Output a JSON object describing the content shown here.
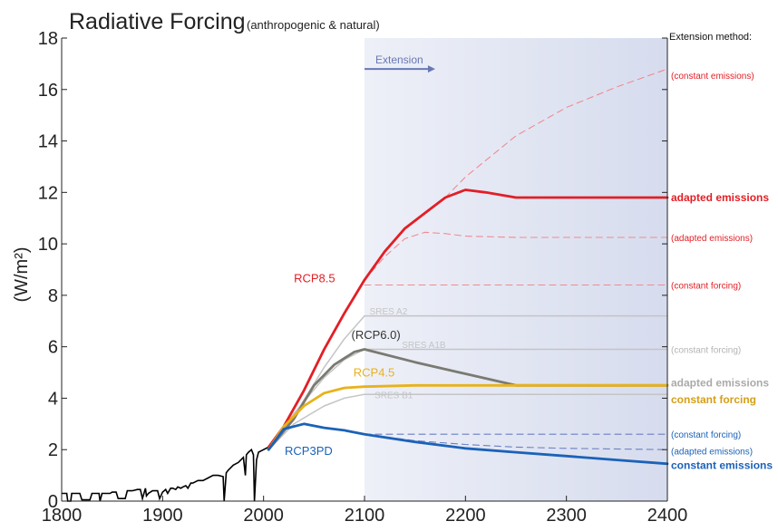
{
  "chart_data": {
    "type": "line",
    "title": "Radiative Forcing",
    "subtitle": "(anthropogenic & natural)",
    "ylabel": "(W/m²)",
    "xlabel": "",
    "xlim": [
      1800,
      2400
    ],
    "ylim": [
      0,
      18
    ],
    "xticks": [
      "1800",
      "1900",
      "2000",
      "2100",
      "2200",
      "2300",
      "2400"
    ],
    "yticks": [
      "0",
      "2",
      "4",
      "6",
      "8",
      "10",
      "12",
      "14",
      "16",
      "18"
    ],
    "grid": false,
    "extension_region": {
      "x_start": 2100,
      "x_end": 2400
    },
    "extension_arrow": {
      "label": "Extension",
      "x_start": 2100,
      "x_end": 2170,
      "y": 16.8
    },
    "legend_title": "Extension method:",
    "colors": {
      "rcp85": "#e31e25",
      "rcp85_light": "#f08a8f",
      "rcp60": "#7a7a72",
      "rcp45": "#e8b21a",
      "rcp3pd": "#1b62b8",
      "rcp3pd_dash": "#6b7fc4",
      "sres": "#c4c4c6",
      "historical": "#000000",
      "extension_band": "#e2e6f3",
      "arrow": "#6978b3"
    },
    "historical": {
      "x": [
        1800,
        1805,
        1806,
        1809,
        1810,
        1818,
        1820,
        1828,
        1830,
        1837,
        1838,
        1840,
        1848,
        1850,
        1854,
        1856,
        1863,
        1865,
        1870,
        1875,
        1878,
        1880,
        1883,
        1884,
        1886,
        1890,
        1895,
        1897,
        1900,
        1903,
        1905,
        1908,
        1910,
        1913,
        1915,
        1918,
        1920,
        1923,
        1925,
        1928,
        1930,
        1935,
        1940,
        1945,
        1950,
        1955,
        1960,
        1961,
        1963,
        1965,
        1970,
        1975,
        1980,
        1982,
        1983,
        1985,
        1988,
        1990,
        1991,
        1993,
        1995,
        2000,
        2005
      ],
      "y": [
        0.3,
        0.3,
        0.0,
        0.0,
        0.3,
        0.3,
        0.05,
        0.05,
        0.3,
        0.3,
        0.0,
        0.3,
        0.3,
        0.35,
        0.35,
        0.1,
        0.1,
        0.4,
        0.4,
        0.45,
        0.45,
        0.1,
        0.5,
        0.2,
        0.3,
        0.4,
        0.4,
        0.1,
        0.35,
        0.45,
        0.3,
        0.5,
        0.5,
        0.45,
        0.55,
        0.5,
        0.55,
        0.6,
        0.5,
        0.7,
        0.7,
        0.8,
        0.8,
        0.9,
        1.0,
        1.0,
        0.95,
        0.0,
        1.1,
        1.2,
        1.4,
        1.5,
        1.7,
        1.0,
        1.8,
        1.9,
        2.0,
        1.8,
        0.0,
        1.6,
        1.9,
        2.0,
        2.1
      ]
    },
    "series": [
      {
        "name": "RCP8.5",
        "label_pos": [
          2030,
          8.5
        ],
        "label_color": "#e31e25",
        "end_label": "adapted emissions",
        "end_label_bold": true,
        "style": "solid",
        "color": "#e31e25",
        "x": [
          2005,
          2020,
          2040,
          2060,
          2080,
          2100,
          2120,
          2140,
          2160,
          2180,
          2200,
          2220,
          2250,
          2300,
          2400
        ],
        "y": [
          2.1,
          2.9,
          4.3,
          5.9,
          7.3,
          8.6,
          9.7,
          10.6,
          11.2,
          11.8,
          12.1,
          12.0,
          11.8,
          11.8,
          11.8
        ]
      },
      {
        "name": "",
        "end_label": "(constant emissions)",
        "style": "dashed",
        "color": "#f08a8f",
        "x": [
          2180,
          2200,
          2250,
          2300,
          2350,
          2400
        ],
        "y": [
          11.8,
          12.6,
          14.2,
          15.3,
          16.1,
          16.8
        ]
      },
      {
        "name": "",
        "end_label": "(adapted emissions)",
        "style": "dashed",
        "color": "#f08a8f",
        "x": [
          2100,
          2120,
          2140,
          2160,
          2180,
          2200,
          2250,
          2300,
          2400
        ],
        "y": [
          8.6,
          9.5,
          10.2,
          10.45,
          10.4,
          10.3,
          10.25,
          10.25,
          10.25
        ]
      },
      {
        "name": "",
        "end_label": "(constant forcing)",
        "style": "dashed",
        "color": "#f08a8f",
        "x": [
          2100,
          2400
        ],
        "y": [
          8.4,
          8.4
        ]
      },
      {
        "name": "SRES A2",
        "label_pos": [
          2105,
          7.25
        ],
        "label_color": "#c4c4c6",
        "end_label": "",
        "style": "solid",
        "color": "#c4c4c6",
        "x": [
          2005,
          2030,
          2060,
          2080,
          2100,
          2400
        ],
        "y": [
          2.0,
          3.3,
          5.2,
          6.3,
          7.2,
          7.2
        ]
      },
      {
        "name": "(RCP6.0)",
        "label_pos": [
          2087,
          6.3
        ],
        "label_color": "#333333",
        "end_label": "adapted emissions",
        "end_label_bold": true,
        "style": "solid",
        "color": "#7a7a72",
        "x": [
          2005,
          2030,
          2050,
          2070,
          2090,
          2100,
          2150,
          2200,
          2250,
          2300,
          2400
        ],
        "y": [
          2.0,
          3.2,
          4.5,
          5.3,
          5.8,
          5.9,
          5.4,
          4.95,
          4.5,
          4.5,
          4.5
        ]
      },
      {
        "name": "SRES A1B",
        "label_pos": [
          2137,
          5.95
        ],
        "label_color": "#c4c4c6",
        "end_label": "(constant forcing)",
        "style": "solid",
        "color": "#c4c4c6",
        "x": [
          2005,
          2030,
          2060,
          2080,
          2100,
          2400
        ],
        "y": [
          2.0,
          3.4,
          4.8,
          5.5,
          5.9,
          5.9
        ]
      },
      {
        "name": "RCP4.5",
        "label_pos": [
          2089,
          4.85
        ],
        "label_color": "#e8b21a",
        "end_label": "constant forcing",
        "end_label_bold": true,
        "style": "solid",
        "color": "#e8b21a",
        "x": [
          2005,
          2020,
          2040,
          2060,
          2080,
          2100,
          2150,
          2400
        ],
        "y": [
          2.0,
          2.9,
          3.7,
          4.2,
          4.4,
          4.45,
          4.5,
          4.5
        ]
      },
      {
        "name": "SRES B1",
        "label_pos": [
          2110,
          4.0
        ],
        "label_color": "#c4c4c6",
        "end_label": "",
        "style": "solid",
        "color": "#c4c4c6",
        "x": [
          2005,
          2030,
          2060,
          2080,
          2100,
          2400
        ],
        "y": [
          2.0,
          3.0,
          3.7,
          4.0,
          4.15,
          4.15
        ]
      },
      {
        "name": "RCP3PD",
        "label_pos": [
          2021,
          1.8
        ],
        "label_color": "#1b62b8",
        "end_label": "constant emissions",
        "end_label_bold": true,
        "style": "solid",
        "color": "#1b62b8",
        "x": [
          2005,
          2020,
          2040,
          2060,
          2080,
          2100,
          2150,
          2200,
          2250,
          2300,
          2350,
          2400
        ],
        "y": [
          2.0,
          2.8,
          3.0,
          2.85,
          2.75,
          2.6,
          2.3,
          2.05,
          1.9,
          1.75,
          1.6,
          1.45
        ]
      },
      {
        "name": "",
        "end_label": "(constant forcing)",
        "style": "dashed",
        "color": "#6b7fc4",
        "x": [
          2100,
          2400
        ],
        "y": [
          2.6,
          2.6
        ]
      },
      {
        "name": "",
        "end_label": "(adapted emissions)",
        "style": "dashed",
        "color": "#6b7fc4",
        "x": [
          2100,
          2150,
          2200,
          2250,
          2300,
          2400
        ],
        "y": [
          2.6,
          2.35,
          2.2,
          2.1,
          2.05,
          2.0
        ]
      }
    ],
    "end_labels": [
      {
        "text": "(constant emissions)",
        "y": 16.55,
        "color": "#e31e25",
        "bold": false
      },
      {
        "text": "adapted emissions",
        "y": 11.8,
        "color": "#e31e25",
        "bold": true
      },
      {
        "text": "(adapted emissions)",
        "y": 10.25,
        "color": "#e31e25",
        "bold": false
      },
      {
        "text": "(constant forcing)",
        "y": 8.4,
        "color": "#e31e25",
        "bold": false
      },
      {
        "text": "(constant forcing)",
        "y": 5.9,
        "color": "#b4b4b4",
        "bold": false
      },
      {
        "text": "adapted emissions",
        "y": 4.6,
        "color": "#aaaaaa",
        "bold": true
      },
      {
        "text": "constant forcing",
        "y": 3.95,
        "color": "#d4a017",
        "bold": true
      },
      {
        "text": "(constant forcing)",
        "y": 2.6,
        "color": "#1b62b8",
        "bold": false
      },
      {
        "text": "(adapted emissions)",
        "y": 1.95,
        "color": "#1b62b8",
        "bold": false
      },
      {
        "text": "constant emissions",
        "y": 1.4,
        "color": "#1b62b8",
        "bold": true
      }
    ]
  }
}
